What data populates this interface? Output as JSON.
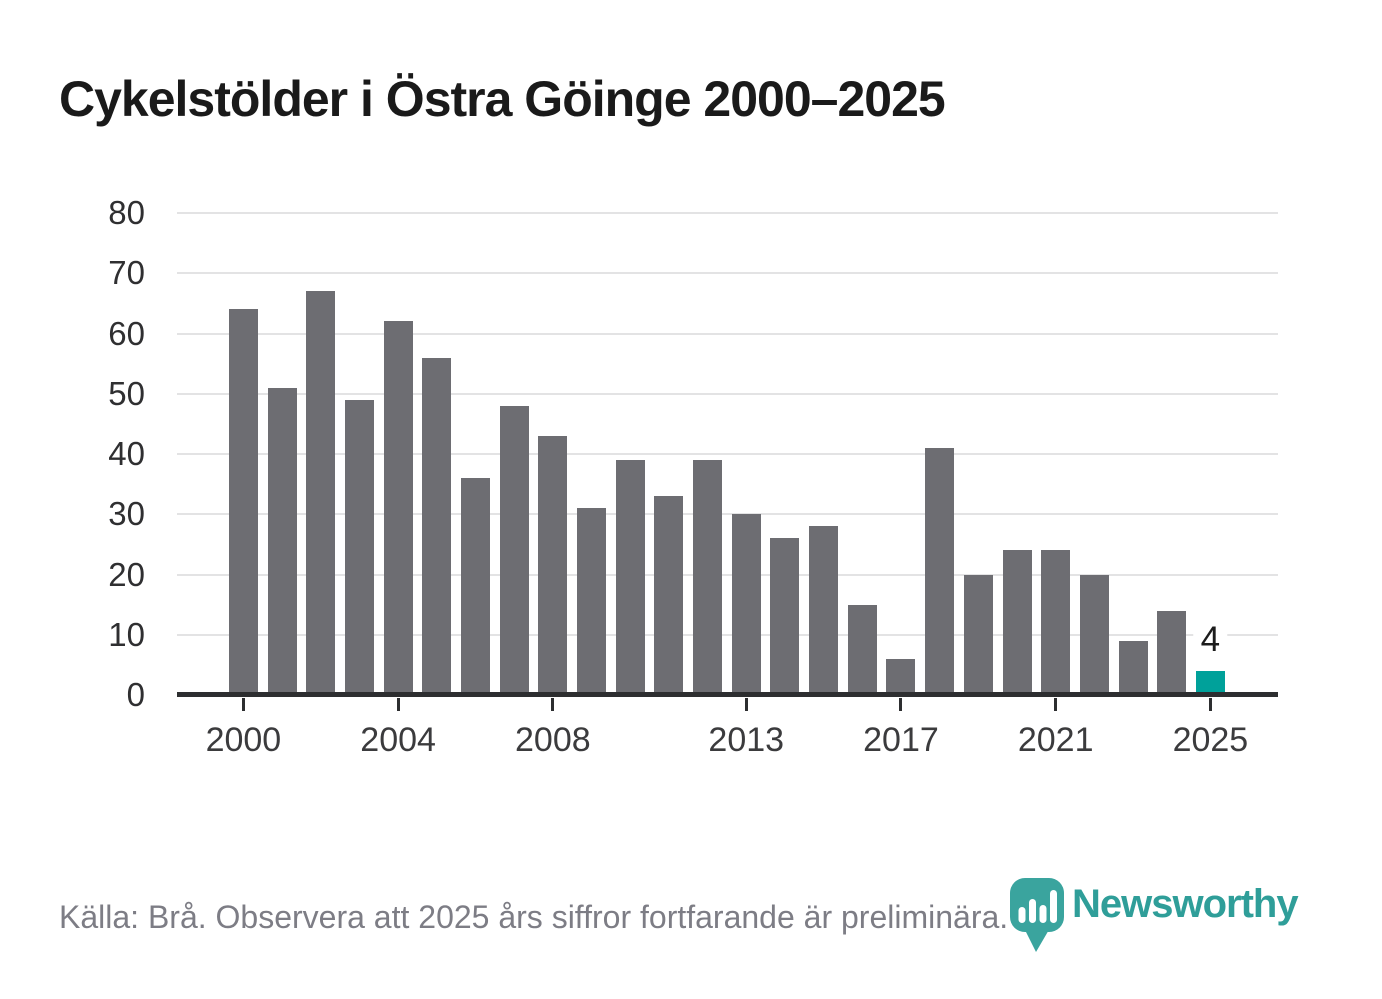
{
  "header": {
    "title": "Cykelstölder i Östra Göinge 2000–2025"
  },
  "chart_data": {
    "type": "bar",
    "title": "Cykelstölder i Östra Göinge 2000–2025",
    "x": [
      2000,
      2001,
      2002,
      2003,
      2004,
      2005,
      2006,
      2007,
      2008,
      2009,
      2010,
      2011,
      2012,
      2013,
      2014,
      2015,
      2016,
      2017,
      2018,
      2019,
      2020,
      2021,
      2022,
      2023,
      2024,
      2025
    ],
    "values": [
      64,
      51,
      67,
      49,
      62,
      56,
      36,
      48,
      43,
      31,
      39,
      33,
      39,
      30,
      26,
      28,
      15,
      6,
      41,
      20,
      24,
      24,
      20,
      9,
      14,
      4
    ],
    "xlabel": "",
    "ylabel": "",
    "ylim": [
      0,
      80
    ],
    "yticks": [
      0,
      10,
      20,
      30,
      40,
      50,
      60,
      70,
      80
    ],
    "xtick_years": [
      2000,
      2004,
      2008,
      2013,
      2017,
      2021,
      2025
    ],
    "xtick_labels": [
      "2000",
      "2004",
      "2008",
      "2013",
      "2017",
      "2021",
      "2025"
    ],
    "grid": "horizontal",
    "legend": "none",
    "bar_color": "#6d6d72",
    "highlight_year": 2025,
    "highlight_color": "#00a19a",
    "annotation": {
      "year": 2025,
      "label": "4"
    }
  },
  "footer": {
    "source": "Källa: Brå. Observera att 2025 års siffror fortfarande är preliminära."
  },
  "logo": {
    "wordmark": "Newsworthy",
    "icon": "newsworthy-speech-bubble-bar-chart-icon",
    "icon_color": "#3aa49e",
    "wordmark_color": "#2f9e99"
  }
}
